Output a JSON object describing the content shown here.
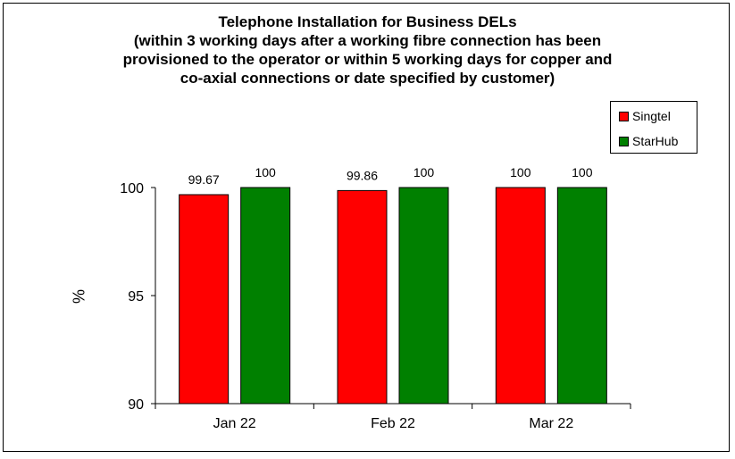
{
  "chart_data": {
    "type": "bar",
    "title_lines": [
      "Telephone Installation for Business DELs",
      "(within 3 working days after a working fibre connection has been",
      "provisioned to the operator or within 5 working days for copper and",
      "co-axial connections or date specified by customer)"
    ],
    "xlabel": "",
    "ylabel": "%",
    "ylim": [
      90,
      100
    ],
    "yticks": [
      90,
      95,
      100
    ],
    "categories": [
      "Jan 22",
      "Feb 22",
      "Mar 22"
    ],
    "series": [
      {
        "name": "Singtel",
        "values": [
          99.67,
          99.86,
          100
        ],
        "labels": [
          "99.67",
          "99.86",
          "100"
        ],
        "color": "#ff0000"
      },
      {
        "name": "StarHub",
        "values": [
          100,
          100,
          100
        ],
        "labels": [
          "100",
          "100",
          "100"
        ],
        "color": "#008000"
      }
    ],
    "legend_position": "top-right",
    "grid": false
  }
}
